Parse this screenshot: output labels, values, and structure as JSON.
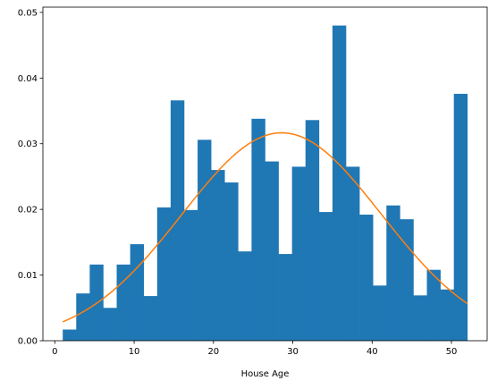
{
  "chart_data": {
    "type": "bar",
    "title": "",
    "xlabel": "House Age",
    "ylabel": "",
    "xlim": [
      -1.5,
      54.5
    ],
    "ylim": [
      0,
      0.0508
    ],
    "grid": false,
    "x_ticks": [
      0,
      10,
      20,
      30,
      40,
      50
    ],
    "x_tick_labels": [
      "0",
      "10",
      "20",
      "30",
      "40",
      "50"
    ],
    "y_ticks": [
      0.0,
      0.01,
      0.02,
      0.03,
      0.04,
      0.05
    ],
    "y_tick_labels": [
      "0.00",
      "0.01",
      "0.02",
      "0.03",
      "0.04",
      "0.05"
    ],
    "bins": {
      "start": 1,
      "width": 1.7,
      "values": [
        0.0017,
        0.0072,
        0.0116,
        0.005,
        0.0116,
        0.0147,
        0.0068,
        0.0203,
        0.0366,
        0.0199,
        0.0306,
        0.026,
        0.0241,
        0.0136,
        0.0338,
        0.0273,
        0.0132,
        0.0265,
        0.0336,
        0.0196,
        0.048,
        0.0265,
        0.0192,
        0.0084,
        0.0206,
        0.0185,
        0.0069,
        0.0108,
        0.0078,
        0.0376
      ]
    },
    "bar_color": "#1f77b4",
    "curve": {
      "type": "normal-pdf",
      "mean": 28.6,
      "std": 12.6,
      "x_range": [
        1,
        52
      ],
      "color": "#ff7f0e"
    }
  }
}
